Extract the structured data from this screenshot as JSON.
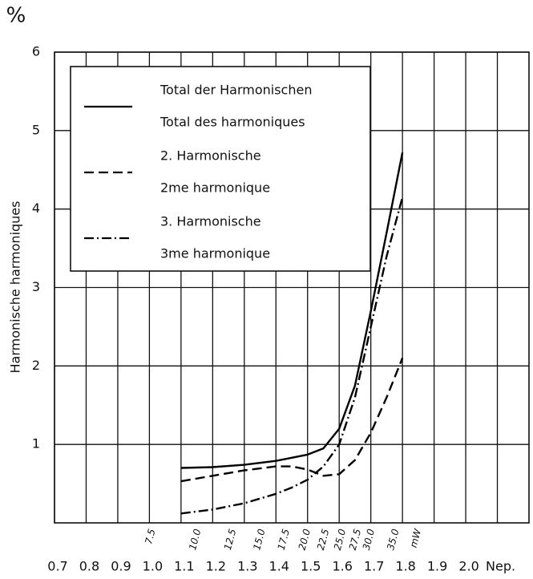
{
  "chart_data": {
    "type": "line",
    "unit_label": "%",
    "ylabel": "Harmonische   harmoniques",
    "x": [
      1.1,
      1.2,
      1.3,
      1.4,
      1.45,
      1.5,
      1.55,
      1.6,
      1.65,
      1.7,
      1.75,
      1.8
    ],
    "series": [
      {
        "name": [
          "Total der Harmonischen",
          "Total des harmoniques"
        ],
        "color": "#000000",
        "dash": "solid",
        "values": [
          0.7,
          0.71,
          0.74,
          0.79,
          0.83,
          0.87,
          0.95,
          1.2,
          1.75,
          2.7,
          3.7,
          4.72
        ]
      },
      {
        "name": [
          "2. Harmonische",
          "2me harmonique"
        ],
        "color": "#000000",
        "dash": "dashed",
        "values": [
          0.53,
          0.6,
          0.67,
          0.72,
          0.72,
          0.68,
          0.6,
          0.62,
          0.8,
          1.15,
          1.6,
          2.1
        ]
      },
      {
        "name": [
          "3. Harmonische",
          "3me harmonique"
        ],
        "color": "#000000",
        "dash": "dashdot",
        "values": [
          0.12,
          0.17,
          0.25,
          0.37,
          0.45,
          0.55,
          0.72,
          1.0,
          1.6,
          2.5,
          3.4,
          4.15
        ]
      }
    ],
    "xlim": [
      0.7,
      2.2
    ],
    "xticks": [
      0.7,
      0.8,
      0.9,
      {
        "value": 1,
        "label": "1.0"
      },
      1.1,
      1.2,
      1.3,
      1.4,
      1.5,
      1.6,
      1.7,
      1.8,
      1.9,
      {
        "value": 2,
        "label": "2.0"
      },
      {
        "value": 2.1,
        "label": "Nep."
      }
    ],
    "x2ticks": [
      {
        "value": 1.0,
        "label": "7.5"
      },
      {
        "value": 1.144,
        "label": "10.0"
      },
      {
        "value": 1.255,
        "label": "12.5"
      },
      {
        "value": 1.347,
        "label": "15.0"
      },
      {
        "value": 1.424,
        "label": "17.5"
      },
      {
        "value": 1.49,
        "label": "20.0"
      },
      {
        "value": 1.549,
        "label": "22.5"
      },
      {
        "value": 1.602,
        "label": "25.0"
      },
      {
        "value": 1.65,
        "label": "27.5"
      },
      {
        "value": 1.693,
        "label": "30.0"
      },
      {
        "value": 1.77,
        "label": "35.0"
      },
      {
        "value": 1.84,
        "label": "mW"
      }
    ],
    "ylim": [
      0,
      6
    ],
    "yticks": [
      1,
      2,
      3,
      4,
      5,
      6
    ],
    "grid": true,
    "legend": "upper left"
  }
}
